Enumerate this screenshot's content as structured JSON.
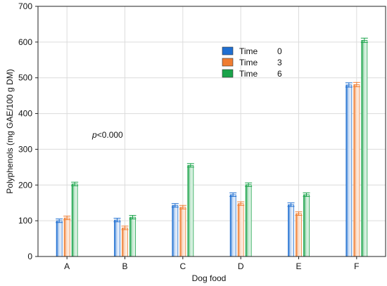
{
  "chart_data": {
    "type": "bar",
    "xlabel": "Dog food",
    "ylabel": "Polyphenols (mg GAE/100 g DM)",
    "ylim": [
      0,
      700
    ],
    "yticks": [
      0,
      100,
      200,
      300,
      400,
      500,
      600,
      700
    ],
    "categories": [
      "A",
      "B",
      "C",
      "D",
      "E",
      "F"
    ],
    "legend": {
      "placement": "top-right",
      "title": "Time"
    },
    "series": [
      {
        "name": "0",
        "color": "#1f6fd1",
        "values": [
          100,
          102,
          143,
          173,
          145,
          480
        ],
        "errors": [
          5,
          5,
          5,
          5,
          5,
          6
        ]
      },
      {
        "name": "3",
        "color": "#ef7d31",
        "values": [
          108,
          80,
          138,
          148,
          120,
          481
        ],
        "errors": [
          5,
          5,
          5,
          5,
          5,
          6
        ]
      },
      {
        "name": "6",
        "color": "#1aa34a",
        "values": [
          203,
          110,
          255,
          201,
          173,
          605
        ],
        "errors": [
          5,
          5,
          5,
          5,
          5,
          6
        ]
      }
    ],
    "annotation": {
      "prefix": "p",
      "text": "<0.000"
    },
    "grid": true
  }
}
